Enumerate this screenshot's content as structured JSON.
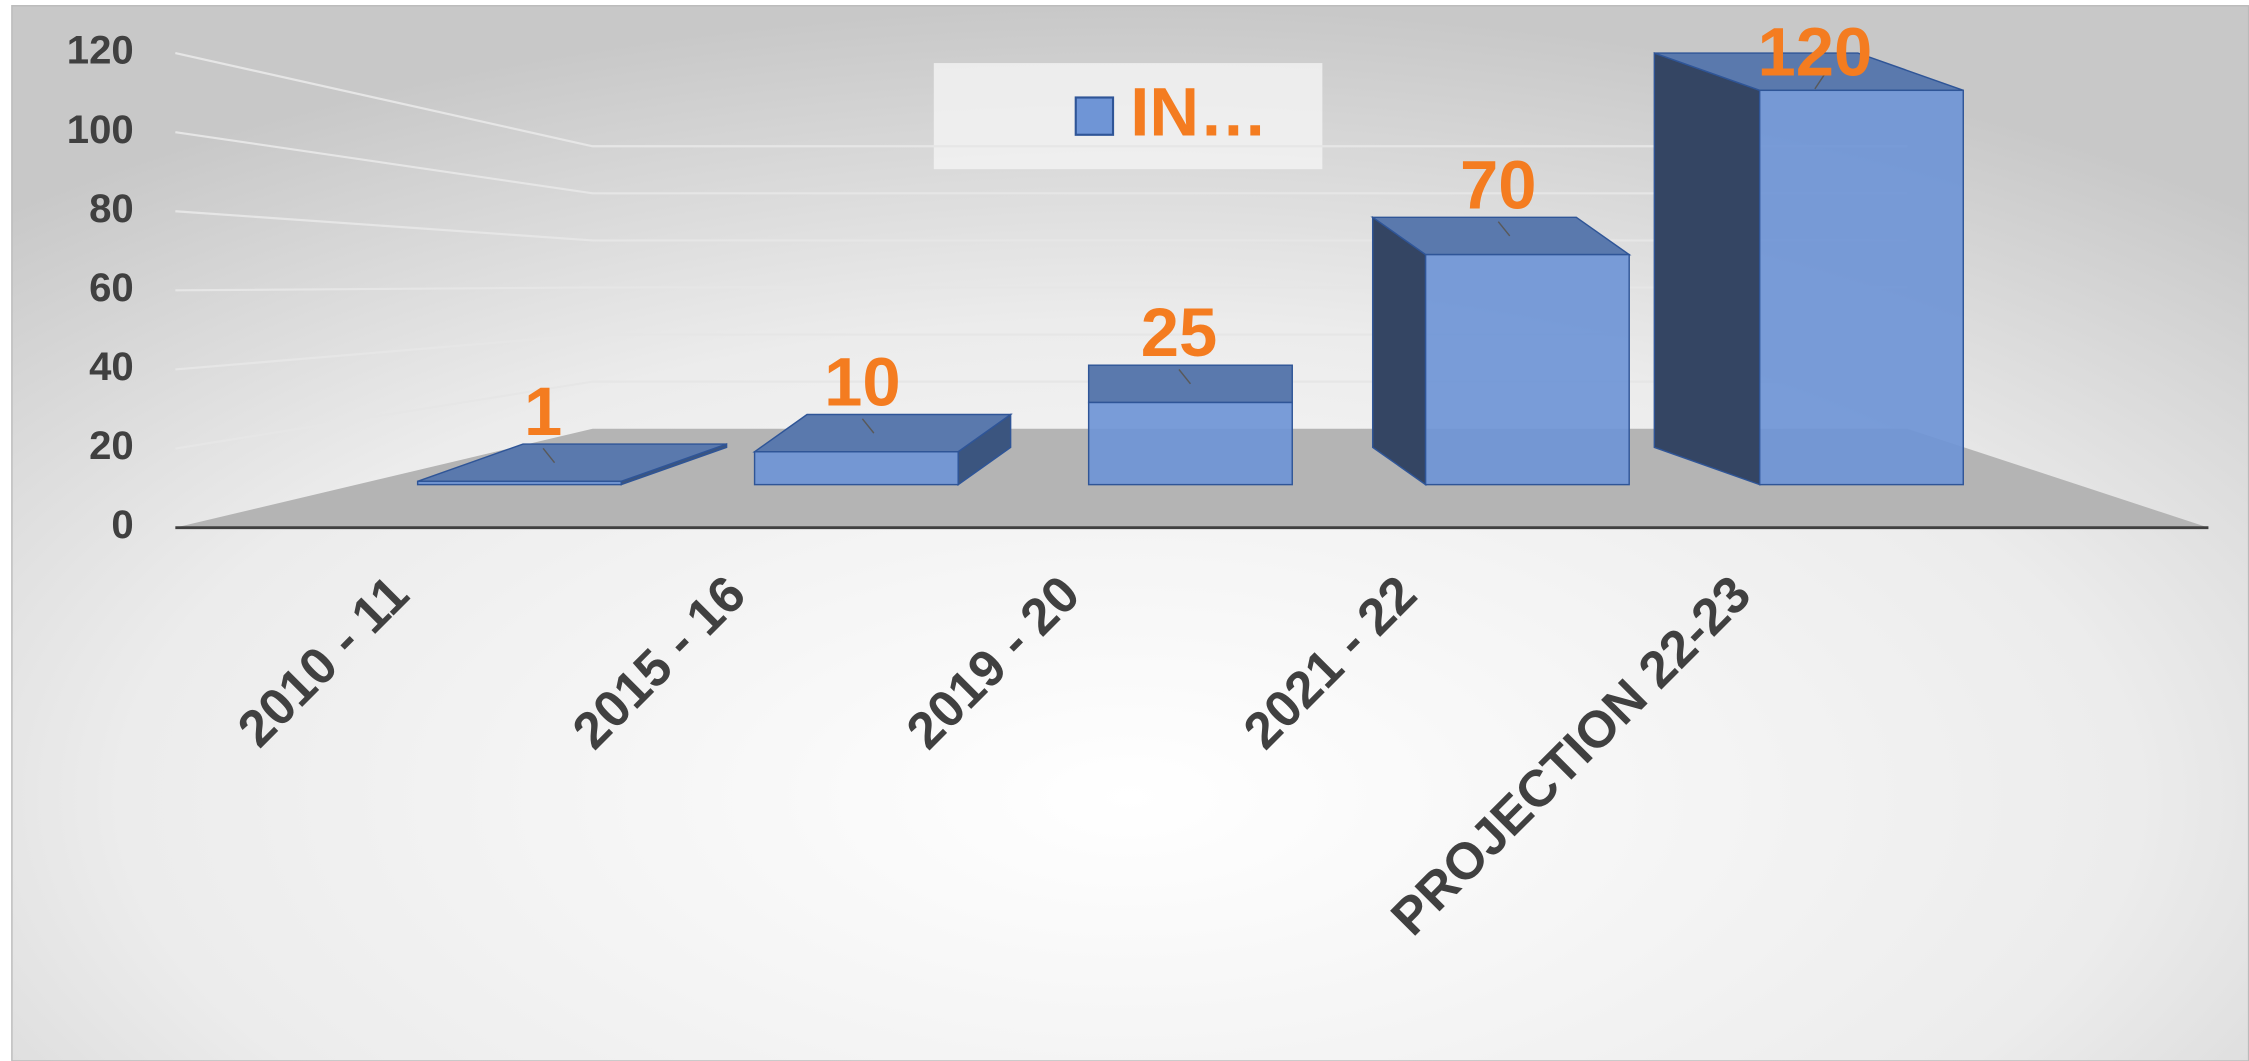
{
  "chart_data": {
    "type": "bar3d",
    "categories": [
      "2010 - 11",
      "2015 - 16",
      "2019 - 20",
      "2021 - 22",
      "PROJECTION 22-23"
    ],
    "series": [
      {
        "name": "IN…",
        "color": "#6f95d6",
        "values": [
          1,
          10,
          25,
          70,
          120
        ]
      }
    ],
    "ylim": [
      0,
      120
    ],
    "yticks": [
      0,
      20,
      40,
      60,
      80,
      100,
      120
    ],
    "grid": true,
    "legend": "top",
    "label_color": "#f47c20"
  }
}
